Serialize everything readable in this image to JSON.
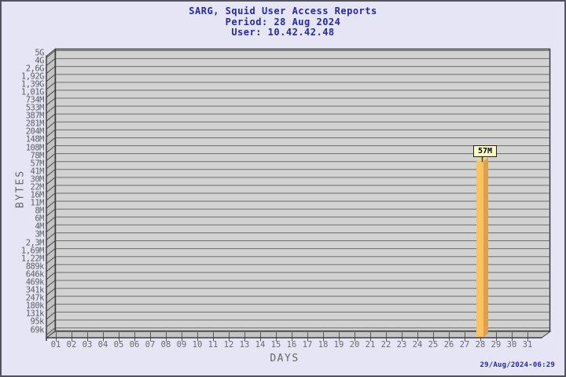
{
  "title": {
    "line1": "SARG, Squid User Access Reports",
    "line2": "Period: 28 Aug 2024",
    "line3": "User: 10.42.42.48"
  },
  "y_axis": {
    "label": "BYTES",
    "ticks": [
      "5G",
      "4G",
      "2,6G",
      "1,92G",
      "1,39G",
      "1,01G",
      "734M",
      "533M",
      "387M",
      "281M",
      "204M",
      "148M",
      "108M",
      "78M",
      "57M",
      "41M",
      "30M",
      "22M",
      "16M",
      "11M",
      "8M",
      "6M",
      "4M",
      "3M",
      "2,3M",
      "1,69M",
      "1,22M",
      "889k",
      "646k",
      "469k",
      "341k",
      "247k",
      "180k",
      "131k",
      "95k",
      "69k"
    ]
  },
  "x_axis": {
    "label": "DAYS",
    "ticks": [
      "01",
      "02",
      "03",
      "04",
      "05",
      "06",
      "07",
      "08",
      "09",
      "10",
      "11",
      "12",
      "13",
      "14",
      "15",
      "16",
      "17",
      "18",
      "19",
      "20",
      "21",
      "22",
      "23",
      "24",
      "25",
      "26",
      "27",
      "28",
      "29",
      "30",
      "31"
    ]
  },
  "bar": {
    "day": "28",
    "value_label": "57M",
    "color_front": "#FCC262",
    "color_side": "#DCA14E",
    "color_top": "#F0D488"
  },
  "footer": {
    "timestamp": "29/Aug/2024-06:29"
  },
  "colors": {
    "page_background": "#E5E5F6",
    "page_border": "#53535E",
    "heading_text": "#2727A2",
    "axis_text": "#666666",
    "plot_wall_fill": "#D2D2D2",
    "side_wall_fill": "#C4C4C4",
    "gridline": "#6E6E6E",
    "frame_stroke": "#3C3C3C",
    "bar_label_box": "#FFFFC6"
  },
  "chart_data": {
    "type": "bar",
    "title": "SARG, Squid User Access Reports",
    "subtitle": "Period: 28 Aug 2024",
    "user": "10.42.42.48",
    "xlabel": "DAYS",
    "ylabel": "BYTES",
    "categories": [
      "01",
      "02",
      "03",
      "04",
      "05",
      "06",
      "07",
      "08",
      "09",
      "10",
      "11",
      "12",
      "13",
      "14",
      "15",
      "16",
      "17",
      "18",
      "19",
      "20",
      "21",
      "22",
      "23",
      "24",
      "25",
      "26",
      "27",
      "28",
      "29",
      "30",
      "31"
    ],
    "values": [
      0,
      0,
      0,
      0,
      0,
      0,
      0,
      0,
      0,
      0,
      0,
      0,
      0,
      0,
      0,
      0,
      0,
      0,
      0,
      0,
      0,
      0,
      0,
      0,
      0,
      0,
      0,
      57000000,
      0,
      0,
      0
    ],
    "value_labels": {
      "28": "57M"
    },
    "y_scale": "logarithmic-custom-ticks",
    "y_tick_labels": [
      "5G",
      "4G",
      "2,6G",
      "1,92G",
      "1,39G",
      "1,01G",
      "734M",
      "533M",
      "387M",
      "281M",
      "204M",
      "148M",
      "108M",
      "78M",
      "57M",
      "41M",
      "30M",
      "22M",
      "16M",
      "11M",
      "8M",
      "6M",
      "4M",
      "3M",
      "2,3M",
      "1,69M",
      "1,22M",
      "889k",
      "646k",
      "469k",
      "341k",
      "247k",
      "180k",
      "131k",
      "95k",
      "69k"
    ],
    "ylim_labels": [
      "69k",
      "5G"
    ],
    "grid": true,
    "legend": false,
    "style": "3d-bar",
    "generated": "29/Aug/2024-06:29"
  }
}
